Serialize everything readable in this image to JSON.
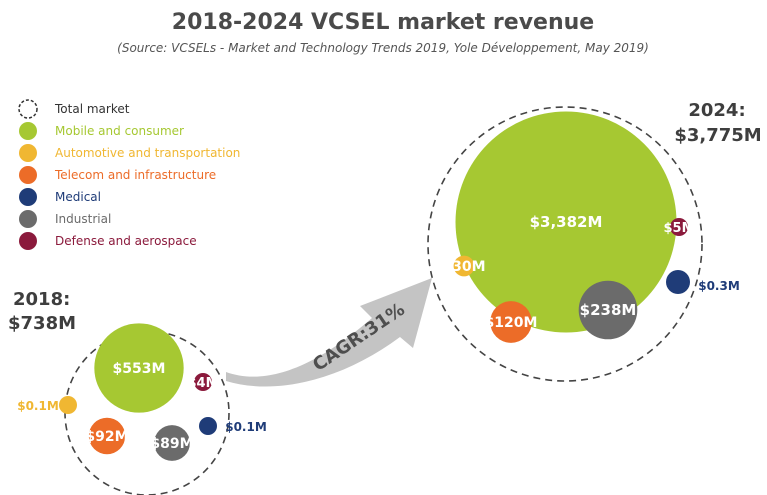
{
  "chart_data": {
    "type": "bubble",
    "title": "2018-2024 VCSEL market revenue",
    "subtitle": "(Source: VCSELs - Market and Technology Trends 2019, Yole Développement, May 2019)",
    "unit": "$M",
    "legend": [
      {
        "name": "Total market",
        "color": "#ffffff",
        "dashed": true
      },
      {
        "name": "Mobile and consumer",
        "color": "#a6c832"
      },
      {
        "name": "Automotive and transportation",
        "color": "#f0b732"
      },
      {
        "name": "Telecom and infrastructure",
        "color": "#ec6c28"
      },
      {
        "name": "Medical",
        "color": "#1f3c78"
      },
      {
        "name": "Industrial",
        "color": "#6b6b6b"
      },
      {
        "name": "Defense and aerospace",
        "color": "#8b1a3c"
      }
    ],
    "years": [
      {
        "year": "2018",
        "total_label": "2018:",
        "total_value_label": "$738M",
        "total_value": 738,
        "segments": [
          {
            "name": "Mobile and consumer",
            "value": 553,
            "label": "$553M"
          },
          {
            "name": "Defense and aerospace",
            "value": 4,
            "label": "$4M"
          },
          {
            "name": "Telecom and infrastructure",
            "value": 92,
            "label": "$92M"
          },
          {
            "name": "Industrial",
            "value": 89,
            "label": "$89M"
          },
          {
            "name": "Automotive and transportation",
            "value": 0.1,
            "label": "$0.1M"
          },
          {
            "name": "Medical",
            "value": 0.1,
            "label": "$0.1M"
          }
        ]
      },
      {
        "year": "2024",
        "total_label": "2024:",
        "total_value_label": "$3,775M",
        "total_value": 3775,
        "segments": [
          {
            "name": "Mobile and consumer",
            "value": 3382,
            "label": "$3,382M"
          },
          {
            "name": "Automotive and transportation",
            "value": 30,
            "label": "$30M"
          },
          {
            "name": "Telecom and infrastructure",
            "value": 120,
            "label": "$120M"
          },
          {
            "name": "Industrial",
            "value": 238,
            "label": "$238M"
          },
          {
            "name": "Defense and aerospace",
            "value": 5,
            "label": "$5M"
          },
          {
            "name": "Medical",
            "value": 0.3,
            "label": "$0.3M"
          }
        ]
      }
    ],
    "cagr_label": "CAGR:31%"
  }
}
